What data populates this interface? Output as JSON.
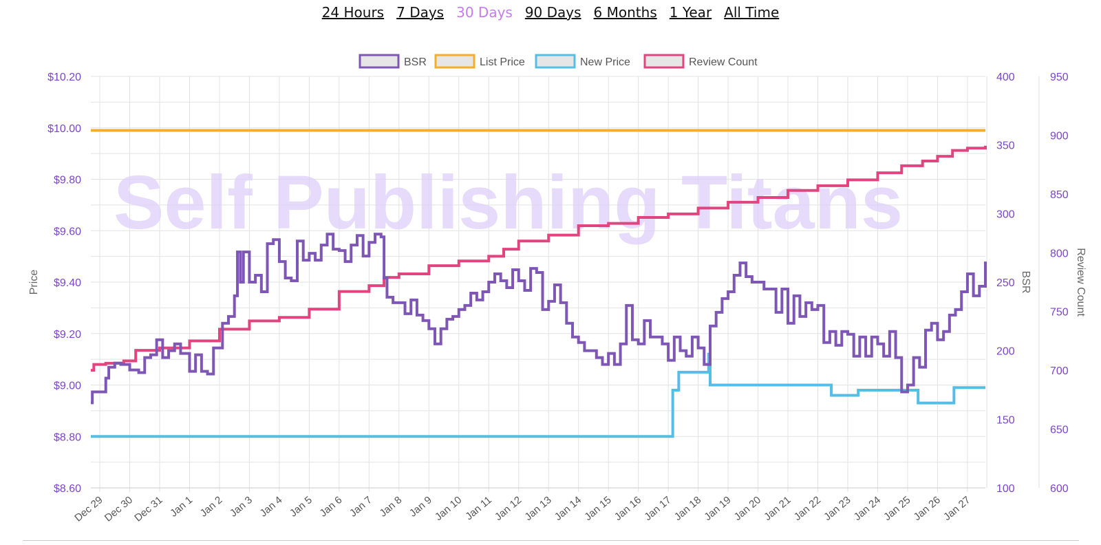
{
  "tabs": [
    {
      "label": "24 Hours",
      "active": false
    },
    {
      "label": "7 Days",
      "active": false
    },
    {
      "label": "30 Days",
      "active": true
    },
    {
      "label": "90 Days",
      "active": false
    },
    {
      "label": "6 Months",
      "active": false
    },
    {
      "label": "1 Year",
      "active": false
    },
    {
      "label": "All Time",
      "active": false
    }
  ],
  "watermark": "Self Publishing Titans",
  "colors": {
    "bsr": "#7e57b5",
    "list_price": "#f5ae2c",
    "new_price": "#56bde4",
    "review_count": "#e0457f",
    "tick_text": "#7b45c8",
    "grid": "#e2e2e2",
    "active_tab": "#c57cf0",
    "watermark": "#dfd0fb"
  },
  "chart_data": {
    "type": "line",
    "grid": true,
    "legend_position": "top-center",
    "categories": [
      "Dec 29",
      "Dec 30",
      "Dec 31",
      "Jan 1",
      "Jan 2",
      "Jan 3",
      "Jan 4",
      "Jan 5",
      "Jan 6",
      "Jan 7",
      "Jan 8",
      "Jan 9",
      "Jan 10",
      "Jan 11",
      "Jan 12",
      "Jan 13",
      "Jan 14",
      "Jan 15",
      "Jan 16",
      "Jan 17",
      "Jan 18",
      "Jan 19",
      "Jan 20",
      "Jan 21",
      "Jan 22",
      "Jan 23",
      "Jan 24",
      "Jan 25",
      "Jan 26",
      "Jan 27"
    ],
    "x_range": [
      -0.3,
      29.6
    ],
    "axes": {
      "price": {
        "label": "Price",
        "range": [
          8.6,
          10.2
        ],
        "ticks": [
          "$8.60",
          "$8.80",
          "$9.00",
          "$9.20",
          "$9.40",
          "$9.60",
          "$9.80",
          "$10.00",
          "$10.20"
        ],
        "tick_values": [
          8.6,
          8.8,
          9.0,
          9.2,
          9.4,
          9.6,
          9.8,
          10.0,
          10.2
        ]
      },
      "bsr": {
        "label": "BSR",
        "range": [
          100,
          400
        ],
        "ticks": [
          "100",
          "150",
          "200",
          "250",
          "300",
          "350",
          "400"
        ],
        "tick_values": [
          100,
          150,
          200,
          250,
          300,
          350,
          400
        ]
      },
      "review": {
        "label": "Review Count",
        "range": [
          600,
          950
        ],
        "ticks": [
          "600",
          "650",
          "700",
          "750",
          "800",
          "850",
          "900",
          "950"
        ],
        "tick_values": [
          600,
          650,
          700,
          750,
          800,
          850,
          900,
          950
        ]
      }
    },
    "series": [
      {
        "name": "BSR",
        "axis": "bsr",
        "color_key": "bsr",
        "points": [
          [
            -0.3,
            162
          ],
          [
            -0.25,
            170
          ],
          [
            0.1,
            170
          ],
          [
            0.2,
            180
          ],
          [
            0.3,
            188
          ],
          [
            0.5,
            191
          ],
          [
            0.7,
            190
          ],
          [
            1.0,
            186
          ],
          [
            1.3,
            184
          ],
          [
            1.5,
            195
          ],
          [
            1.7,
            197
          ],
          [
            1.9,
            208
          ],
          [
            2.1,
            195
          ],
          [
            2.3,
            200
          ],
          [
            2.5,
            205
          ],
          [
            2.7,
            198
          ],
          [
            3.0,
            185
          ],
          [
            3.2,
            197
          ],
          [
            3.4,
            185
          ],
          [
            3.6,
            183
          ],
          [
            3.8,
            202
          ],
          [
            4.1,
            220
          ],
          [
            4.3,
            225
          ],
          [
            4.5,
            240
          ],
          [
            4.6,
            272
          ],
          [
            4.7,
            250
          ],
          [
            4.8,
            272
          ],
          [
            5.0,
            250
          ],
          [
            5.2,
            255
          ],
          [
            5.4,
            243
          ],
          [
            5.6,
            278
          ],
          [
            5.8,
            281
          ],
          [
            6.0,
            265
          ],
          [
            6.2,
            253
          ],
          [
            6.4,
            251
          ],
          [
            6.6,
            280
          ],
          [
            6.8,
            266
          ],
          [
            7.0,
            271
          ],
          [
            7.2,
            266
          ],
          [
            7.4,
            277
          ],
          [
            7.6,
            285
          ],
          [
            7.8,
            274
          ],
          [
            8.0,
            273
          ],
          [
            8.2,
            265
          ],
          [
            8.4,
            277
          ],
          [
            8.6,
            284
          ],
          [
            8.8,
            269
          ],
          [
            9.0,
            279
          ],
          [
            9.2,
            285
          ],
          [
            9.4,
            283
          ],
          [
            9.5,
            253
          ],
          [
            9.6,
            239
          ],
          [
            9.8,
            235
          ],
          [
            10.0,
            235
          ],
          [
            10.2,
            227
          ],
          [
            10.4,
            237
          ],
          [
            10.6,
            226
          ],
          [
            10.8,
            222
          ],
          [
            11.0,
            216
          ],
          [
            11.2,
            205
          ],
          [
            11.4,
            216
          ],
          [
            11.6,
            223
          ],
          [
            11.8,
            225
          ],
          [
            12.0,
            230
          ],
          [
            12.2,
            233
          ],
          [
            12.4,
            242
          ],
          [
            12.6,
            237
          ],
          [
            12.8,
            243
          ],
          [
            13.0,
            250
          ],
          [
            13.2,
            256
          ],
          [
            13.4,
            251
          ],
          [
            13.6,
            246
          ],
          [
            13.8,
            259
          ],
          [
            14.0,
            251
          ],
          [
            14.2,
            244
          ],
          [
            14.4,
            260
          ],
          [
            14.6,
            257
          ],
          [
            14.8,
            230
          ],
          [
            15.0,
            236
          ],
          [
            15.2,
            248
          ],
          [
            15.4,
            235
          ],
          [
            15.6,
            220
          ],
          [
            15.8,
            210
          ],
          [
            16.0,
            206
          ],
          [
            16.2,
            200
          ],
          [
            16.4,
            200
          ],
          [
            16.6,
            195
          ],
          [
            16.8,
            190
          ],
          [
            17.0,
            198
          ],
          [
            17.2,
            190
          ],
          [
            17.4,
            205
          ],
          [
            17.6,
            233
          ],
          [
            17.8,
            208
          ],
          [
            18.0,
            205
          ],
          [
            18.2,
            222
          ],
          [
            18.4,
            210
          ],
          [
            18.6,
            210
          ],
          [
            18.8,
            205
          ],
          [
            19.0,
            193
          ],
          [
            19.2,
            210
          ],
          [
            19.4,
            200
          ],
          [
            19.6,
            196
          ],
          [
            19.8,
            210
          ],
          [
            20.0,
            202
          ],
          [
            20.2,
            190
          ],
          [
            20.4,
            218
          ],
          [
            20.6,
            228
          ],
          [
            20.8,
            238
          ],
          [
            21.0,
            243
          ],
          [
            21.2,
            255
          ],
          [
            21.4,
            264
          ],
          [
            21.6,
            254
          ],
          [
            21.8,
            250
          ],
          [
            22.0,
            250
          ],
          [
            22.2,
            245
          ],
          [
            22.4,
            245
          ],
          [
            22.6,
            228
          ],
          [
            22.8,
            245
          ],
          [
            23.0,
            220
          ],
          [
            23.2,
            240
          ],
          [
            23.4,
            225
          ],
          [
            23.6,
            235
          ],
          [
            23.8,
            230
          ],
          [
            24.0,
            233
          ],
          [
            24.2,
            206
          ],
          [
            24.4,
            214
          ],
          [
            24.6,
            204
          ],
          [
            24.8,
            214
          ],
          [
            25.0,
            212
          ],
          [
            25.2,
            196
          ],
          [
            25.4,
            210
          ],
          [
            25.6,
            196
          ],
          [
            25.8,
            210
          ],
          [
            26.0,
            205
          ],
          [
            26.2,
            196
          ],
          [
            26.4,
            214
          ],
          [
            26.6,
            195
          ],
          [
            26.8,
            170
          ],
          [
            27.0,
            175
          ],
          [
            27.2,
            195
          ],
          [
            27.4,
            188
          ],
          [
            27.6,
            215
          ],
          [
            27.8,
            220
          ],
          [
            28.0,
            208
          ],
          [
            28.2,
            214
          ],
          [
            28.4,
            226
          ],
          [
            28.6,
            230
          ],
          [
            28.8,
            243
          ],
          [
            29.0,
            256
          ],
          [
            29.2,
            240
          ],
          [
            29.4,
            247
          ],
          [
            29.6,
            265
          ],
          [
            29.8,
            278
          ],
          [
            30.0,
            262
          ],
          [
            30.2,
            255
          ],
          [
            30.4,
            262
          ],
          [
            30.6,
            271
          ],
          [
            30.8,
            282
          ],
          [
            31.0,
            266
          ],
          [
            31.2,
            302
          ],
          [
            31.4,
            284
          ],
          [
            31.6,
            285
          ],
          [
            31.8,
            300
          ],
          [
            32.0,
            290
          ],
          [
            32.2,
            300
          ],
          [
            32.4,
            322
          ],
          [
            32.6,
            340
          ],
          [
            32.8,
            318
          ],
          [
            33.0,
            300
          ],
          [
            33.2,
            304
          ],
          [
            33.4,
            300
          ],
          [
            33.6,
            323
          ],
          [
            33.8,
            316
          ],
          [
            34.0,
            330
          ]
        ]
      },
      {
        "name": "List Price",
        "axis": "price",
        "color_key": "list_price",
        "points": [
          [
            -0.3,
            9.99
          ],
          [
            29.6,
            9.99
          ]
        ]
      },
      {
        "name": "New Price",
        "axis": "price",
        "color_key": "new_price",
        "points": [
          [
            -0.3,
            8.8
          ],
          [
            19.1,
            8.8
          ],
          [
            19.15,
            8.98
          ],
          [
            19.3,
            8.98
          ],
          [
            19.35,
            9.05
          ],
          [
            20.3,
            9.05
          ],
          [
            20.35,
            9.12
          ],
          [
            20.4,
            9.0
          ],
          [
            24.4,
            9.0
          ],
          [
            24.45,
            8.96
          ],
          [
            25.3,
            8.96
          ],
          [
            25.35,
            8.98
          ],
          [
            27.3,
            8.98
          ],
          [
            27.35,
            8.93
          ],
          [
            28.5,
            8.93
          ],
          [
            28.55,
            8.99
          ],
          [
            29.6,
            8.99
          ]
        ]
      },
      {
        "name": "Review Count",
        "axis": "review",
        "color_key": "review_count",
        "points": [
          [
            -0.3,
            700
          ],
          [
            -0.2,
            705
          ],
          [
            0.2,
            706
          ],
          [
            0.8,
            708
          ],
          [
            1.2,
            717
          ],
          [
            2.0,
            719
          ],
          [
            3.0,
            725
          ],
          [
            4.0,
            735
          ],
          [
            5.0,
            742
          ],
          [
            6.0,
            745
          ],
          [
            7.0,
            752
          ],
          [
            8.0,
            767
          ],
          [
            9.0,
            772
          ],
          [
            9.5,
            779
          ],
          [
            10.0,
            782
          ],
          [
            11.0,
            789
          ],
          [
            12.0,
            793
          ],
          [
            13.0,
            797
          ],
          [
            13.5,
            803
          ],
          [
            14.0,
            810
          ],
          [
            15.0,
            815
          ],
          [
            16.0,
            823
          ],
          [
            17.0,
            825
          ],
          [
            18.0,
            830
          ],
          [
            19.0,
            833
          ],
          [
            20.0,
            838
          ],
          [
            21.0,
            843
          ],
          [
            22.0,
            847
          ],
          [
            23.0,
            853
          ],
          [
            24.0,
            857
          ],
          [
            25.0,
            862
          ],
          [
            26.0,
            868
          ],
          [
            26.8,
            874
          ],
          [
            27.5,
            878
          ],
          [
            28.0,
            882
          ],
          [
            28.5,
            887
          ],
          [
            29.0,
            889
          ],
          [
            29.6,
            891
          ]
        ]
      }
    ]
  }
}
